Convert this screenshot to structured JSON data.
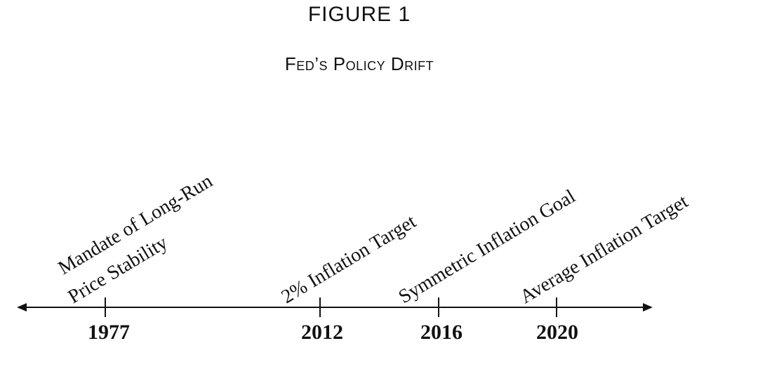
{
  "figure": {
    "number_label": "FIGURE 1",
    "title": "Fed’s Policy Drift"
  },
  "timeline": {
    "events": [
      {
        "year": "1977",
        "lines": [
          "Mandate of Long-Run",
          "Price Stability"
        ]
      },
      {
        "year": "2012",
        "lines": [
          "2% Inflation Target"
        ]
      },
      {
        "year": "2016",
        "lines": [
          "Symmetric Inflation Goal"
        ]
      },
      {
        "year": "2020",
        "lines": [
          "Average Inflation Target"
        ]
      }
    ]
  }
}
